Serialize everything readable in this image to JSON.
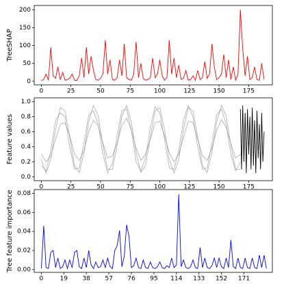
{
  "chart_data": [
    {
      "type": "line",
      "ylabel": "TreeSHAP",
      "xlim": [
        -6,
        195
      ],
      "ylim": [
        -10,
        212
      ],
      "xticks": [
        0,
        25,
        50,
        75,
        100,
        125,
        150,
        175
      ],
      "yticks": [
        0,
        50,
        100,
        150,
        200
      ],
      "x": [
        0,
        2,
        4,
        6,
        8,
        10,
        12,
        14,
        16,
        18,
        20,
        22,
        24,
        26,
        28,
        30,
        32,
        34,
        36,
        38,
        40,
        42,
        44,
        46,
        48,
        50,
        52,
        54,
        56,
        58,
        60,
        62,
        64,
        66,
        68,
        70,
        72,
        74,
        76,
        78,
        80,
        82,
        84,
        86,
        88,
        90,
        92,
        94,
        96,
        98,
        100,
        102,
        104,
        106,
        108,
        110,
        112,
        114,
        116,
        118,
        120,
        122,
        124,
        126,
        128,
        130,
        132,
        134,
        136,
        138,
        140,
        142,
        144,
        146,
        148,
        150,
        152,
        154,
        156,
        158,
        160,
        162,
        164,
        166,
        168,
        170,
        172,
        174,
        176,
        178,
        180,
        182,
        184,
        186,
        188
      ],
      "series": [
        {
          "color": "#ff0000",
          "values": [
            2,
            5,
            20,
            3,
            95,
            15,
            8,
            40,
            5,
            25,
            3,
            5,
            8,
            20,
            3,
            2,
            15,
            65,
            10,
            95,
            20,
            70,
            30,
            5,
            3,
            8,
            20,
            115,
            20,
            60,
            5,
            3,
            10,
            60,
            15,
            105,
            10,
            5,
            3,
            20,
            110,
            10,
            50,
            8,
            3,
            5,
            10,
            65,
            10,
            20,
            60,
            15,
            3,
            10,
            115,
            20,
            65,
            10,
            45,
            5,
            8,
            30,
            3,
            5,
            15,
            3,
            30,
            5,
            10,
            55,
            8,
            20,
            105,
            40,
            5,
            10,
            20,
            75,
            10,
            60,
            5,
            40,
            3,
            20,
            200,
            90,
            15,
            70,
            5,
            10,
            40,
            5,
            3,
            50,
            5
          ]
        }
      ]
    },
    {
      "type": "line",
      "ylabel": "Feature values",
      "xlim": [
        -6,
        195
      ],
      "ylim": [
        -0.05,
        1.05
      ],
      "xticks": [
        0,
        25,
        50,
        75,
        100,
        125,
        150,
        175
      ],
      "yticks": [
        {
          "value": 0,
          "label": "0.0"
        },
        {
          "value": 0.2,
          "label": "0.2"
        },
        {
          "value": 0.4,
          "label": "0.4"
        },
        {
          "value": 0.6,
          "label": "0.6"
        },
        {
          "value": 0.8,
          "label": "0.8"
        },
        {
          "value": 1,
          "label": "1.0"
        }
      ],
      "series": [
        {
          "color": "#888888",
          "x": [
            0,
            4,
            8,
            12,
            16,
            20,
            24,
            28,
            32,
            36,
            40,
            44,
            48,
            52,
            56,
            60,
            64,
            68,
            72,
            76,
            80,
            84,
            88,
            92,
            96,
            100,
            104,
            108,
            112,
            116,
            120,
            124,
            128,
            132,
            136,
            140,
            144,
            148,
            152,
            156,
            160,
            164,
            168
          ],
          "values": [
            0.23,
            0.05,
            0.23,
            0.63,
            0.92,
            0.88,
            0.53,
            0.15,
            0.06,
            0.32,
            0.73,
            0.95,
            0.81,
            0.42,
            0.1,
            0.1,
            0.42,
            0.81,
            0.95,
            0.73,
            0.32,
            0.06,
            0.15,
            0.53,
            0.88,
            0.92,
            0.63,
            0.23,
            0.05,
            0.23,
            0.63,
            0.92,
            0.88,
            0.53,
            0.15,
            0.06,
            0.32,
            0.73,
            0.95,
            0.81,
            0.42,
            0.1,
            0.1
          ]
        },
        {
          "color": "#888888",
          "x": [
            0,
            4,
            8,
            12,
            16,
            20,
            24,
            28,
            32,
            36,
            40,
            44,
            48,
            52,
            56,
            60,
            64,
            68,
            72,
            76,
            80,
            84,
            88,
            92,
            96,
            100,
            104,
            108,
            112,
            116,
            120,
            124,
            128,
            132,
            136,
            140,
            144,
            148,
            152,
            156,
            160,
            164,
            168
          ],
          "values": [
            0.15,
            0.08,
            0.35,
            0.75,
            0.85,
            0.8,
            0.4,
            0.1,
            0.12,
            0.45,
            0.82,
            0.88,
            0.7,
            0.3,
            0.05,
            0.18,
            0.55,
            0.88,
            0.9,
            0.62,
            0.2,
            0.08,
            0.25,
            0.66,
            0.93,
            0.85,
            0.5,
            0.12,
            0.1,
            0.35,
            0.75,
            0.95,
            0.8,
            0.4,
            0.1,
            0.12,
            0.45,
            0.82,
            0.9,
            0.7,
            0.3,
            0.08,
            0.2
          ]
        },
        {
          "color": "#888888",
          "x": [
            0,
            4,
            8,
            12,
            16,
            20,
            24,
            28,
            32,
            36,
            40,
            44,
            48,
            52,
            56,
            60,
            64,
            68,
            72,
            76,
            80,
            84,
            88,
            92,
            96,
            100,
            104,
            108,
            112,
            116,
            120,
            124,
            128,
            132,
            136,
            140,
            144,
            148,
            152,
            156,
            160,
            164,
            168
          ],
          "values": [
            0.3,
            0.2,
            0.28,
            0.5,
            0.7,
            0.72,
            0.55,
            0.3,
            0.22,
            0.35,
            0.6,
            0.75,
            0.68,
            0.45,
            0.25,
            0.28,
            0.45,
            0.68,
            0.78,
            0.62,
            0.38,
            0.22,
            0.3,
            0.5,
            0.72,
            0.74,
            0.55,
            0.32,
            0.2,
            0.3,
            0.52,
            0.74,
            0.72,
            0.5,
            0.28,
            0.22,
            0.38,
            0.62,
            0.76,
            0.66,
            0.44,
            0.25,
            0.3
          ]
        },
        {
          "color": "#000000",
          "x": [
            168,
            169,
            170,
            171,
            172,
            173,
            174,
            175,
            176,
            177,
            178,
            179,
            180,
            181,
            182,
            183,
            184,
            185,
            186,
            187,
            188
          ],
          "values": [
            0.9,
            0.1,
            0.95,
            0.2,
            0.85,
            0.05,
            0.9,
            0.3,
            0.8,
            0.1,
            0.92,
            0.15,
            0.75,
            0.05,
            0.88,
            0.25,
            0.7,
            0.1,
            0.85,
            0.2,
            0.6
          ]
        }
      ]
    },
    {
      "type": "line",
      "ylabel": "Tree feature importance",
      "xlim": [
        -6,
        195
      ],
      "ylim": [
        -0.003,
        0.084
      ],
      "xticks": [
        0,
        19,
        38,
        57,
        76,
        95,
        114,
        133,
        152,
        171
      ],
      "yticks": [
        {
          "value": 0,
          "label": "0.00"
        },
        {
          "value": 0.02,
          "label": "0.02"
        },
        {
          "value": 0.04,
          "label": "0.04"
        },
        {
          "value": 0.06,
          "label": "0.06"
        },
        {
          "value": 0.08,
          "label": "0.08"
        }
      ],
      "x": [
        0,
        2,
        4,
        6,
        8,
        10,
        12,
        14,
        16,
        18,
        20,
        22,
        24,
        26,
        28,
        30,
        32,
        34,
        36,
        38,
        40,
        42,
        44,
        46,
        48,
        50,
        52,
        54,
        56,
        58,
        60,
        62,
        64,
        66,
        68,
        70,
        72,
        74,
        76,
        78,
        80,
        82,
        84,
        86,
        88,
        90,
        92,
        94,
        96,
        98,
        100,
        102,
        104,
        106,
        108,
        110,
        112,
        114,
        116,
        118,
        120,
        122,
        124,
        126,
        128,
        130,
        132,
        134,
        136,
        138,
        140,
        142,
        144,
        146,
        148,
        150,
        152,
        154,
        156,
        158,
        160,
        162,
        164,
        166,
        168,
        170,
        172,
        174,
        176,
        178,
        180,
        182,
        184,
        186,
        188,
        190
      ],
      "series": [
        {
          "color": "#0000ff",
          "values": [
            0.001,
            0.046,
            0.002,
            0.001,
            0.018,
            0.02,
            0.002,
            0.012,
            0.001,
            0.003,
            0.01,
            0.001,
            0.01,
            0.002,
            0.018,
            0.02,
            0.003,
            0.001,
            0.012,
            0.002,
            0.02,
            0.005,
            0.001,
            0.008,
            0.002,
            0.003,
            0.01,
            0.002,
            0.012,
            0.003,
            0.001,
            0.02,
            0.025,
            0.041,
            0.003,
            0.014,
            0.047,
            0.035,
            0.002,
            0.004,
            0.012,
            0.002,
            0.001,
            0.01,
            0.002,
            0.001,
            0.008,
            0.002,
            0.001,
            0.003,
            0.008,
            0.002,
            0.001,
            0.004,
            0.002,
            0.012,
            0.002,
            0.005,
            0.079,
            0.003,
            0.01,
            0.002,
            0.001,
            0.003,
            0.01,
            0.002,
            0.001,
            0.023,
            0.002,
            0.012,
            0.002,
            0.001,
            0.004,
            0.012,
            0.002,
            0.012,
            0.003,
            0.001,
            0.012,
            0.002,
            0.031,
            0.003,
            0.001,
            0.012,
            0.002,
            0.001,
            0.012,
            0.002,
            0.001,
            0.012,
            0.002,
            0.001,
            0.015,
            0.002,
            0.015,
            0.001
          ]
        }
      ]
    }
  ]
}
